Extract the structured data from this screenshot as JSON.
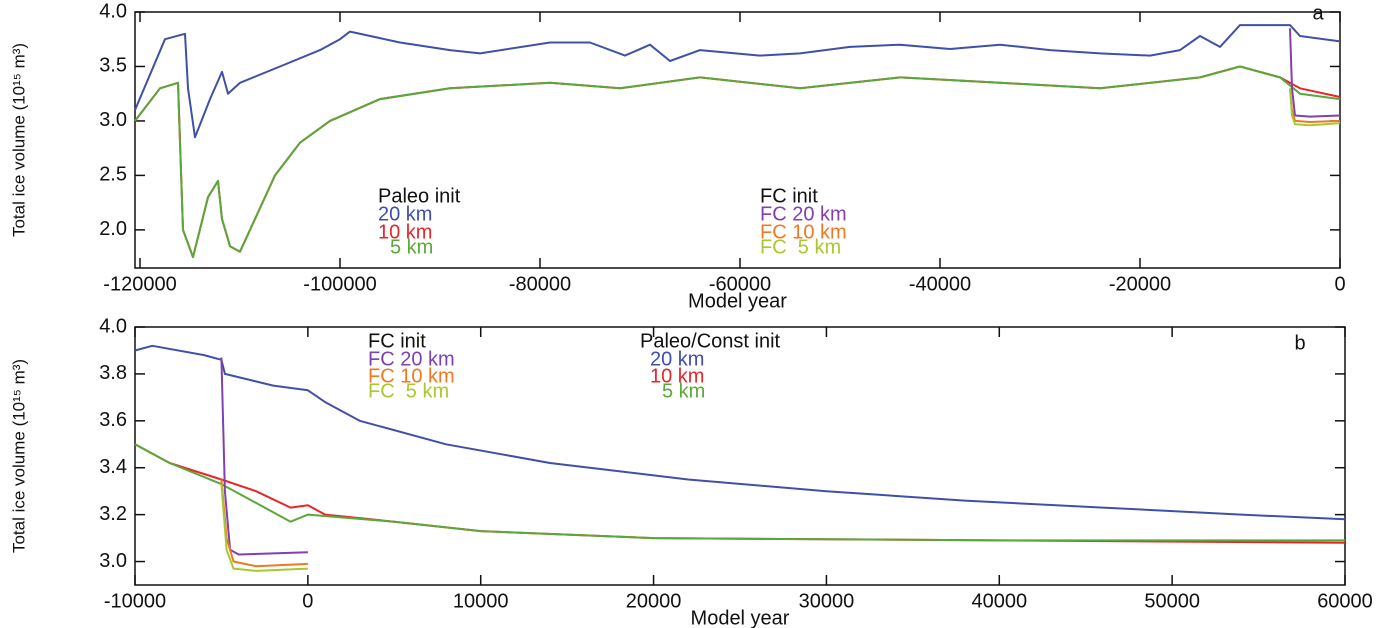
{
  "chart_data": [
    {
      "type": "line",
      "panel_label": "a",
      "xlabel": "Model year",
      "ylabel": "Total ice volume (10¹⁵ m³)",
      "xlim": [
        -120500,
        0
      ],
      "ylim": [
        1.65,
        4.0
      ],
      "xticks": [
        -120000,
        -100000,
        -80000,
        -60000,
        -40000,
        -20000,
        0
      ],
      "yticks": [
        {
          "value": 2,
          "label": "2.0"
        },
        2.5,
        {
          "value": 3,
          "label": "3.0"
        },
        3.5,
        {
          "value": 4,
          "label": "4.0"
        }
      ],
      "legend_titles": [
        "Paleo init",
        "FC init"
      ],
      "series": [
        {
          "name": "20 km",
          "color": "#4050a8",
          "x": [
            -120500,
            -117500,
            -115500,
            -115200,
            -114500,
            -113000,
            -111800,
            -111200,
            -110000,
            -106000,
            -102000,
            -100000,
            -99000,
            -94000,
            -89000,
            -86000,
            -79000,
            -75000,
            -71500,
            -69000,
            -67000,
            -64000,
            -58000,
            -54000,
            -49000,
            -44000,
            -39000,
            -34000,
            -29000,
            -24000,
            -19000,
            -16000,
            -14000,
            -12000,
            -10000,
            -5000,
            -4000,
            0
          ],
          "values": [
            3.1,
            3.75,
            3.8,
            3.3,
            2.85,
            3.2,
            3.45,
            3.25,
            3.35,
            3.5,
            3.65,
            3.75,
            3.82,
            3.72,
            3.65,
            3.62,
            3.72,
            3.72,
            3.6,
            3.7,
            3.55,
            3.65,
            3.6,
            3.62,
            3.68,
            3.7,
            3.66,
            3.7,
            3.65,
            3.62,
            3.6,
            3.65,
            3.78,
            3.68,
            3.88,
            3.88,
            3.78,
            3.73
          ]
        },
        {
          "name": "10 km",
          "color": "#e8262a",
          "x": [
            -120500,
            -118000,
            -116200,
            -115700,
            -114700,
            -113200,
            -112200,
            -111800,
            -111000,
            -110000,
            -108500,
            -106500,
            -104000,
            -101000,
            -96000,
            -89000,
            -79000,
            -72000,
            -64000,
            -54000,
            -44000,
            -34000,
            -24000,
            -14000,
            -10000,
            -6000,
            -4000,
            0
          ],
          "values": [
            3.0,
            3.3,
            3.35,
            2.0,
            1.75,
            2.3,
            2.45,
            2.1,
            1.85,
            1.8,
            2.1,
            2.5,
            2.8,
            3.0,
            3.2,
            3.3,
            3.35,
            3.3,
            3.4,
            3.3,
            3.4,
            3.35,
            3.3,
            3.4,
            3.5,
            3.4,
            3.3,
            3.22
          ]
        },
        {
          "name": "5 km",
          "color": "#5aa83a",
          "x": [
            -120500,
            -118000,
            -116200,
            -115700,
            -114700,
            -113200,
            -112200,
            -111800,
            -111000,
            -110000,
            -108500,
            -106500,
            -104000,
            -101000,
            -96000,
            -89000,
            -79000,
            -72000,
            -64000,
            -54000,
            -44000,
            -34000,
            -24000,
            -14000,
            -10000,
            -6000,
            -4000,
            0
          ],
          "values": [
            3.0,
            3.3,
            3.35,
            2.0,
            1.75,
            2.3,
            2.45,
            2.1,
            1.85,
            1.8,
            2.1,
            2.5,
            2.8,
            3.0,
            3.2,
            3.3,
            3.35,
            3.3,
            3.4,
            3.3,
            3.4,
            3.35,
            3.3,
            3.4,
            3.5,
            3.4,
            3.25,
            3.2
          ]
        },
        {
          "name": "FC 20 km",
          "color": "#8040b0",
          "x": [
            -5000,
            -4800,
            -4500,
            -3000,
            0
          ],
          "values": [
            3.85,
            3.3,
            3.05,
            3.04,
            3.05
          ]
        },
        {
          "name": "FC 10 km",
          "color": "#f07820",
          "x": [
            -5000,
            -4800,
            -4500,
            -3000,
            0
          ],
          "values": [
            3.3,
            3.1,
            3.0,
            2.99,
            3.0
          ]
        },
        {
          "name": "FC  5 km",
          "color": "#a8c830",
          "x": [
            -5000,
            -4800,
            -4500,
            -3000,
            0
          ],
          "values": [
            3.3,
            3.05,
            2.97,
            2.96,
            2.98
          ]
        }
      ]
    },
    {
      "type": "line",
      "panel_label": "b",
      "xlabel": "Model year",
      "ylabel": "Total ice volume (10¹⁵ m³)",
      "xlim": [
        -10000,
        60000
      ],
      "ylim": [
        2.9,
        4.0
      ],
      "xticks": [
        -10000,
        0,
        10000,
        20000,
        30000,
        40000,
        50000,
        60000
      ],
      "yticks": [
        {
          "value": 3,
          "label": "3.0"
        },
        3.2,
        3.4,
        3.6,
        3.8,
        {
          "value": 4,
          "label": "4.0"
        }
      ],
      "legend_titles": [
        "FC init",
        "Paleo/Const init"
      ],
      "series": [
        {
          "name": "20 km",
          "color": "#4050a8",
          "x": [
            -10000,
            -9000,
            -6000,
            -5000,
            -4800,
            -2000,
            0,
            1000,
            3000,
            8000,
            14000,
            22000,
            30000,
            38000,
            46000,
            54000,
            60000
          ],
          "values": [
            3.9,
            3.92,
            3.88,
            3.86,
            3.8,
            3.75,
            3.73,
            3.68,
            3.6,
            3.5,
            3.42,
            3.35,
            3.3,
            3.26,
            3.23,
            3.2,
            3.18
          ]
        },
        {
          "name": "10 km",
          "color": "#e8262a",
          "x": [
            -10000,
            -8000,
            -5000,
            -3000,
            -1000,
            0,
            1000,
            5000,
            10000,
            20000,
            40000,
            60000
          ],
          "values": [
            3.5,
            3.42,
            3.35,
            3.3,
            3.23,
            3.24,
            3.2,
            3.17,
            3.13,
            3.1,
            3.09,
            3.08
          ]
        },
        {
          "name": "5 km",
          "color": "#5aa83a",
          "x": [
            -10000,
            -8000,
            -5000,
            -3000,
            -1000,
            0,
            5000,
            10000,
            20000,
            40000,
            60000
          ],
          "values": [
            3.5,
            3.42,
            3.33,
            3.25,
            3.17,
            3.2,
            3.17,
            3.13,
            3.1,
            3.09,
            3.09
          ]
        },
        {
          "name": "FC 20 km",
          "color": "#8040b0",
          "x": [
            -5000,
            -4800,
            -4500,
            -4000,
            0
          ],
          "values": [
            3.87,
            3.3,
            3.05,
            3.03,
            3.04
          ]
        },
        {
          "name": "FC 10 km",
          "color": "#f07820",
          "x": [
            -5000,
            -4700,
            -4300,
            -3000,
            0
          ],
          "values": [
            3.35,
            3.1,
            3.0,
            2.98,
            2.99
          ]
        },
        {
          "name": "FC  5 km",
          "color": "#a8c830",
          "x": [
            -5000,
            -4700,
            -4300,
            -3000,
            0
          ],
          "values": [
            3.33,
            3.05,
            2.97,
            2.96,
            2.97
          ]
        }
      ]
    }
  ]
}
